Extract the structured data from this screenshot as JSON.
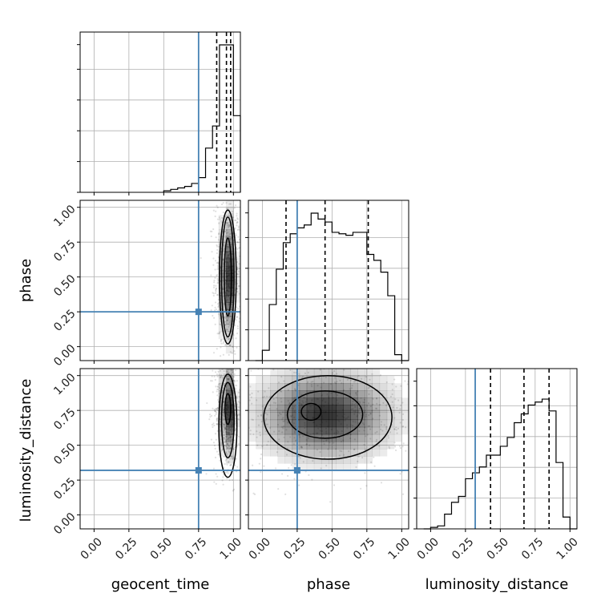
{
  "chart_data": {
    "type": "corner",
    "parameters": [
      "geocent_time",
      "phase",
      "luminosity_distance"
    ],
    "axis_range": [
      -0.1,
      1.05
    ],
    "tick_labels": [
      "0.00",
      "0.25",
      "0.50",
      "0.75",
      "1.00"
    ],
    "tick_values": [
      0,
      0.25,
      0.5,
      0.75,
      1.0
    ],
    "grid": true,
    "colors": {
      "truth": "#4682b4",
      "hist": "#000000",
      "density": "#000000"
    },
    "truths": {
      "geocent_time": 0.75,
      "phase": 0.25,
      "luminosity_distance": 0.32
    },
    "quantiles": {
      "geocent_time": [
        0.88,
        0.95,
        0.98
      ],
      "phase": [
        0.17,
        0.45,
        0.76
      ],
      "luminosity_distance": [
        0.43,
        0.67,
        0.85
      ]
    },
    "marginals": {
      "geocent_time": {
        "bin_edges": [
          0.5,
          0.55,
          0.6,
          0.65,
          0.7,
          0.75,
          0.8,
          0.85,
          0.9,
          0.95,
          1.0,
          1.05
        ],
        "counts": [
          0.01,
          0.02,
          0.03,
          0.04,
          0.06,
          0.1,
          0.3,
          0.45,
          1.0,
          1.0,
          0.52
        ]
      },
      "phase": {
        "bin_edges": [
          -0.05,
          0.0,
          0.05,
          0.1,
          0.15,
          0.2,
          0.25,
          0.3,
          0.35,
          0.4,
          0.45,
          0.5,
          0.55,
          0.6,
          0.65,
          0.7,
          0.75,
          0.8,
          0.85,
          0.9,
          0.95,
          1.0,
          1.05
        ],
        "counts": [
          0.0,
          0.07,
          0.38,
          0.62,
          0.8,
          0.86,
          0.9,
          0.92,
          1.0,
          0.96,
          0.94,
          0.87,
          0.86,
          0.85,
          0.87,
          0.87,
          0.72,
          0.68,
          0.6,
          0.44,
          0.04,
          0.0
        ]
      },
      "luminosity_distance": {
        "bin_edges": [
          -0.05,
          0.0,
          0.05,
          0.1,
          0.15,
          0.2,
          0.25,
          0.3,
          0.35,
          0.4,
          0.45,
          0.5,
          0.55,
          0.6,
          0.65,
          0.7,
          0.75,
          0.8,
          0.85,
          0.9,
          0.95,
          1.0,
          1.05
        ],
        "counts": [
          0.0,
          0.01,
          0.02,
          0.1,
          0.18,
          0.22,
          0.34,
          0.38,
          0.42,
          0.5,
          0.5,
          0.56,
          0.62,
          0.72,
          0.78,
          0.84,
          0.86,
          0.88,
          0.8,
          0.45,
          0.08,
          0.0
        ]
      }
    },
    "density_2d": [
      {
        "x": "geocent_time",
        "y": "phase",
        "center": [
          0.96,
          0.5
        ],
        "spread": [
          0.03,
          0.24
        ],
        "contour_levels": [
          {
            "center": [
              0.96,
              0.5
            ],
            "half_width": [
              0.025,
              0.28
            ]
          },
          {
            "center": [
              0.96,
              0.5
            ],
            "half_width": [
              0.045,
              0.43
            ]
          },
          {
            "center": [
              0.96,
              0.5
            ],
            "half_width": [
              0.06,
              0.48
            ]
          }
        ]
      },
      {
        "x": "geocent_time",
        "y": "luminosity_distance",
        "center": [
          0.96,
          0.75
        ],
        "spread": [
          0.03,
          0.18
        ],
        "contour_levels": [
          {
            "center": [
              0.96,
              0.76
            ],
            "half_width": [
              0.02,
              0.11
            ]
          },
          {
            "center": [
              0.96,
              0.68
            ],
            "half_width": [
              0.045,
              0.27
            ]
          },
          {
            "center": [
              0.96,
              0.64
            ],
            "half_width": [
              0.065,
              0.37
            ]
          }
        ]
      },
      {
        "x": "phase",
        "y": "luminosity_distance",
        "center": [
          0.45,
          0.72
        ],
        "spread": [
          0.27,
          0.18
        ],
        "contour_levels": [
          {
            "center": [
              0.35,
              0.74
            ],
            "half_width": [
              0.07,
              0.06
            ]
          },
          {
            "center": [
              0.45,
              0.72
            ],
            "half_width": [
              0.27,
              0.17
            ]
          },
          {
            "center": [
              0.47,
              0.7
            ],
            "half_width": [
              0.46,
              0.3
            ]
          }
        ]
      }
    ]
  }
}
